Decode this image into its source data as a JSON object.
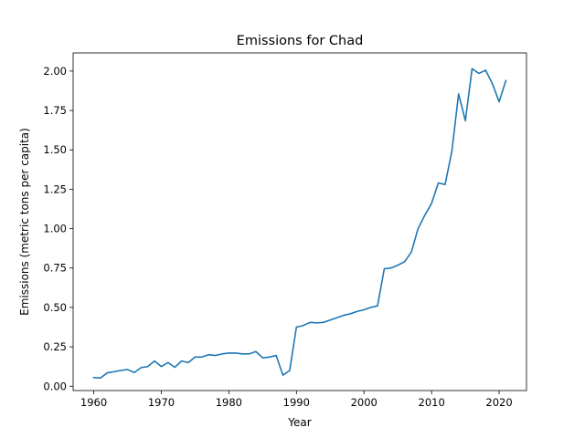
{
  "chart_data": {
    "type": "line",
    "title": "Emissions for Chad",
    "xlabel": "Year",
    "ylabel": "Emissions (metric tons per capita)",
    "xlim": [
      1956.95,
      2024.05
    ],
    "ylim": [
      -0.0275,
      2.115
    ],
    "xticks": [
      1960,
      1970,
      1980,
      1990,
      2000,
      2010,
      2020
    ],
    "yticks": [
      0.0,
      0.25,
      0.5,
      0.75,
      1.0,
      1.25,
      1.5,
      1.75,
      2.0
    ],
    "ytick_labels": [
      "0.00",
      "0.25",
      "0.50",
      "0.75",
      "1.00",
      "1.25",
      "1.50",
      "1.75",
      "2.00"
    ],
    "grid": false,
    "series": [
      {
        "color": "#1f77b4",
        "x": [
          1960,
          1961,
          1962,
          1963,
          1964,
          1965,
          1966,
          1967,
          1968,
          1969,
          1970,
          1971,
          1972,
          1973,
          1974,
          1975,
          1976,
          1977,
          1978,
          1979,
          1980,
          1981,
          1982,
          1983,
          1984,
          1985,
          1986,
          1987,
          1988,
          1989,
          1990,
          1991,
          1992,
          1993,
          1994,
          1995,
          1996,
          1997,
          1998,
          1999,
          2000,
          2001,
          2002,
          2003,
          2004,
          2005,
          2006,
          2007,
          2008,
          2009,
          2010,
          2011,
          2012,
          2013,
          2014,
          2015,
          2016,
          2017,
          2018,
          2019,
          2020,
          2021
        ],
        "values": [
          0.055,
          0.052,
          0.085,
          0.092,
          0.1,
          0.106,
          0.087,
          0.118,
          0.125,
          0.16,
          0.125,
          0.15,
          0.12,
          0.16,
          0.15,
          0.185,
          0.185,
          0.2,
          0.195,
          0.205,
          0.21,
          0.21,
          0.205,
          0.205,
          0.22,
          0.18,
          0.185,
          0.195,
          0.07,
          0.1,
          0.375,
          0.385,
          0.405,
          0.402,
          0.405,
          0.42,
          0.435,
          0.45,
          0.46,
          0.475,
          0.485,
          0.5,
          0.51,
          0.745,
          0.75,
          0.768,
          0.79,
          0.85,
          1.0,
          1.085,
          1.16,
          1.29,
          1.28,
          1.49,
          1.855,
          1.685,
          2.015,
          1.985,
          2.005,
          1.92,
          1.805,
          1.94
        ]
      }
    ]
  }
}
